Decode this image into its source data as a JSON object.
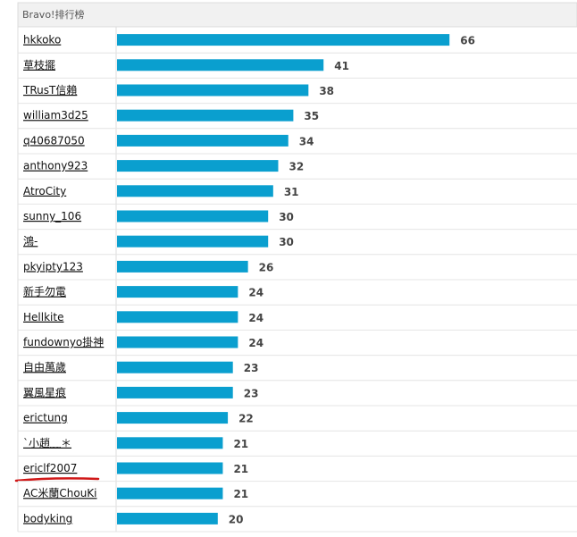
{
  "chart_data": {
    "type": "bar",
    "title": "Bravo!排行榜",
    "categories": [
      "hkkoko",
      "草枝擺",
      "TRusT信賴",
      "william3d25",
      "q40687050",
      "anthony923",
      "AtroCity",
      "sunny_106",
      "鴻-",
      "pkyipty123",
      "新手勿電",
      "Hellkite",
      "fundownyo掛神",
      "自由萬歲",
      "翼風星痕",
      "erictung",
      "ˋ小趙﹏＊",
      "ericlf2007",
      "AC米蘭ChouKi",
      "bodyking"
    ],
    "values": [
      66,
      41,
      38,
      35,
      34,
      32,
      31,
      30,
      30,
      26,
      24,
      24,
      24,
      23,
      23,
      22,
      21,
      21,
      21,
      20
    ],
    "color": "#0a9fcf"
  }
}
